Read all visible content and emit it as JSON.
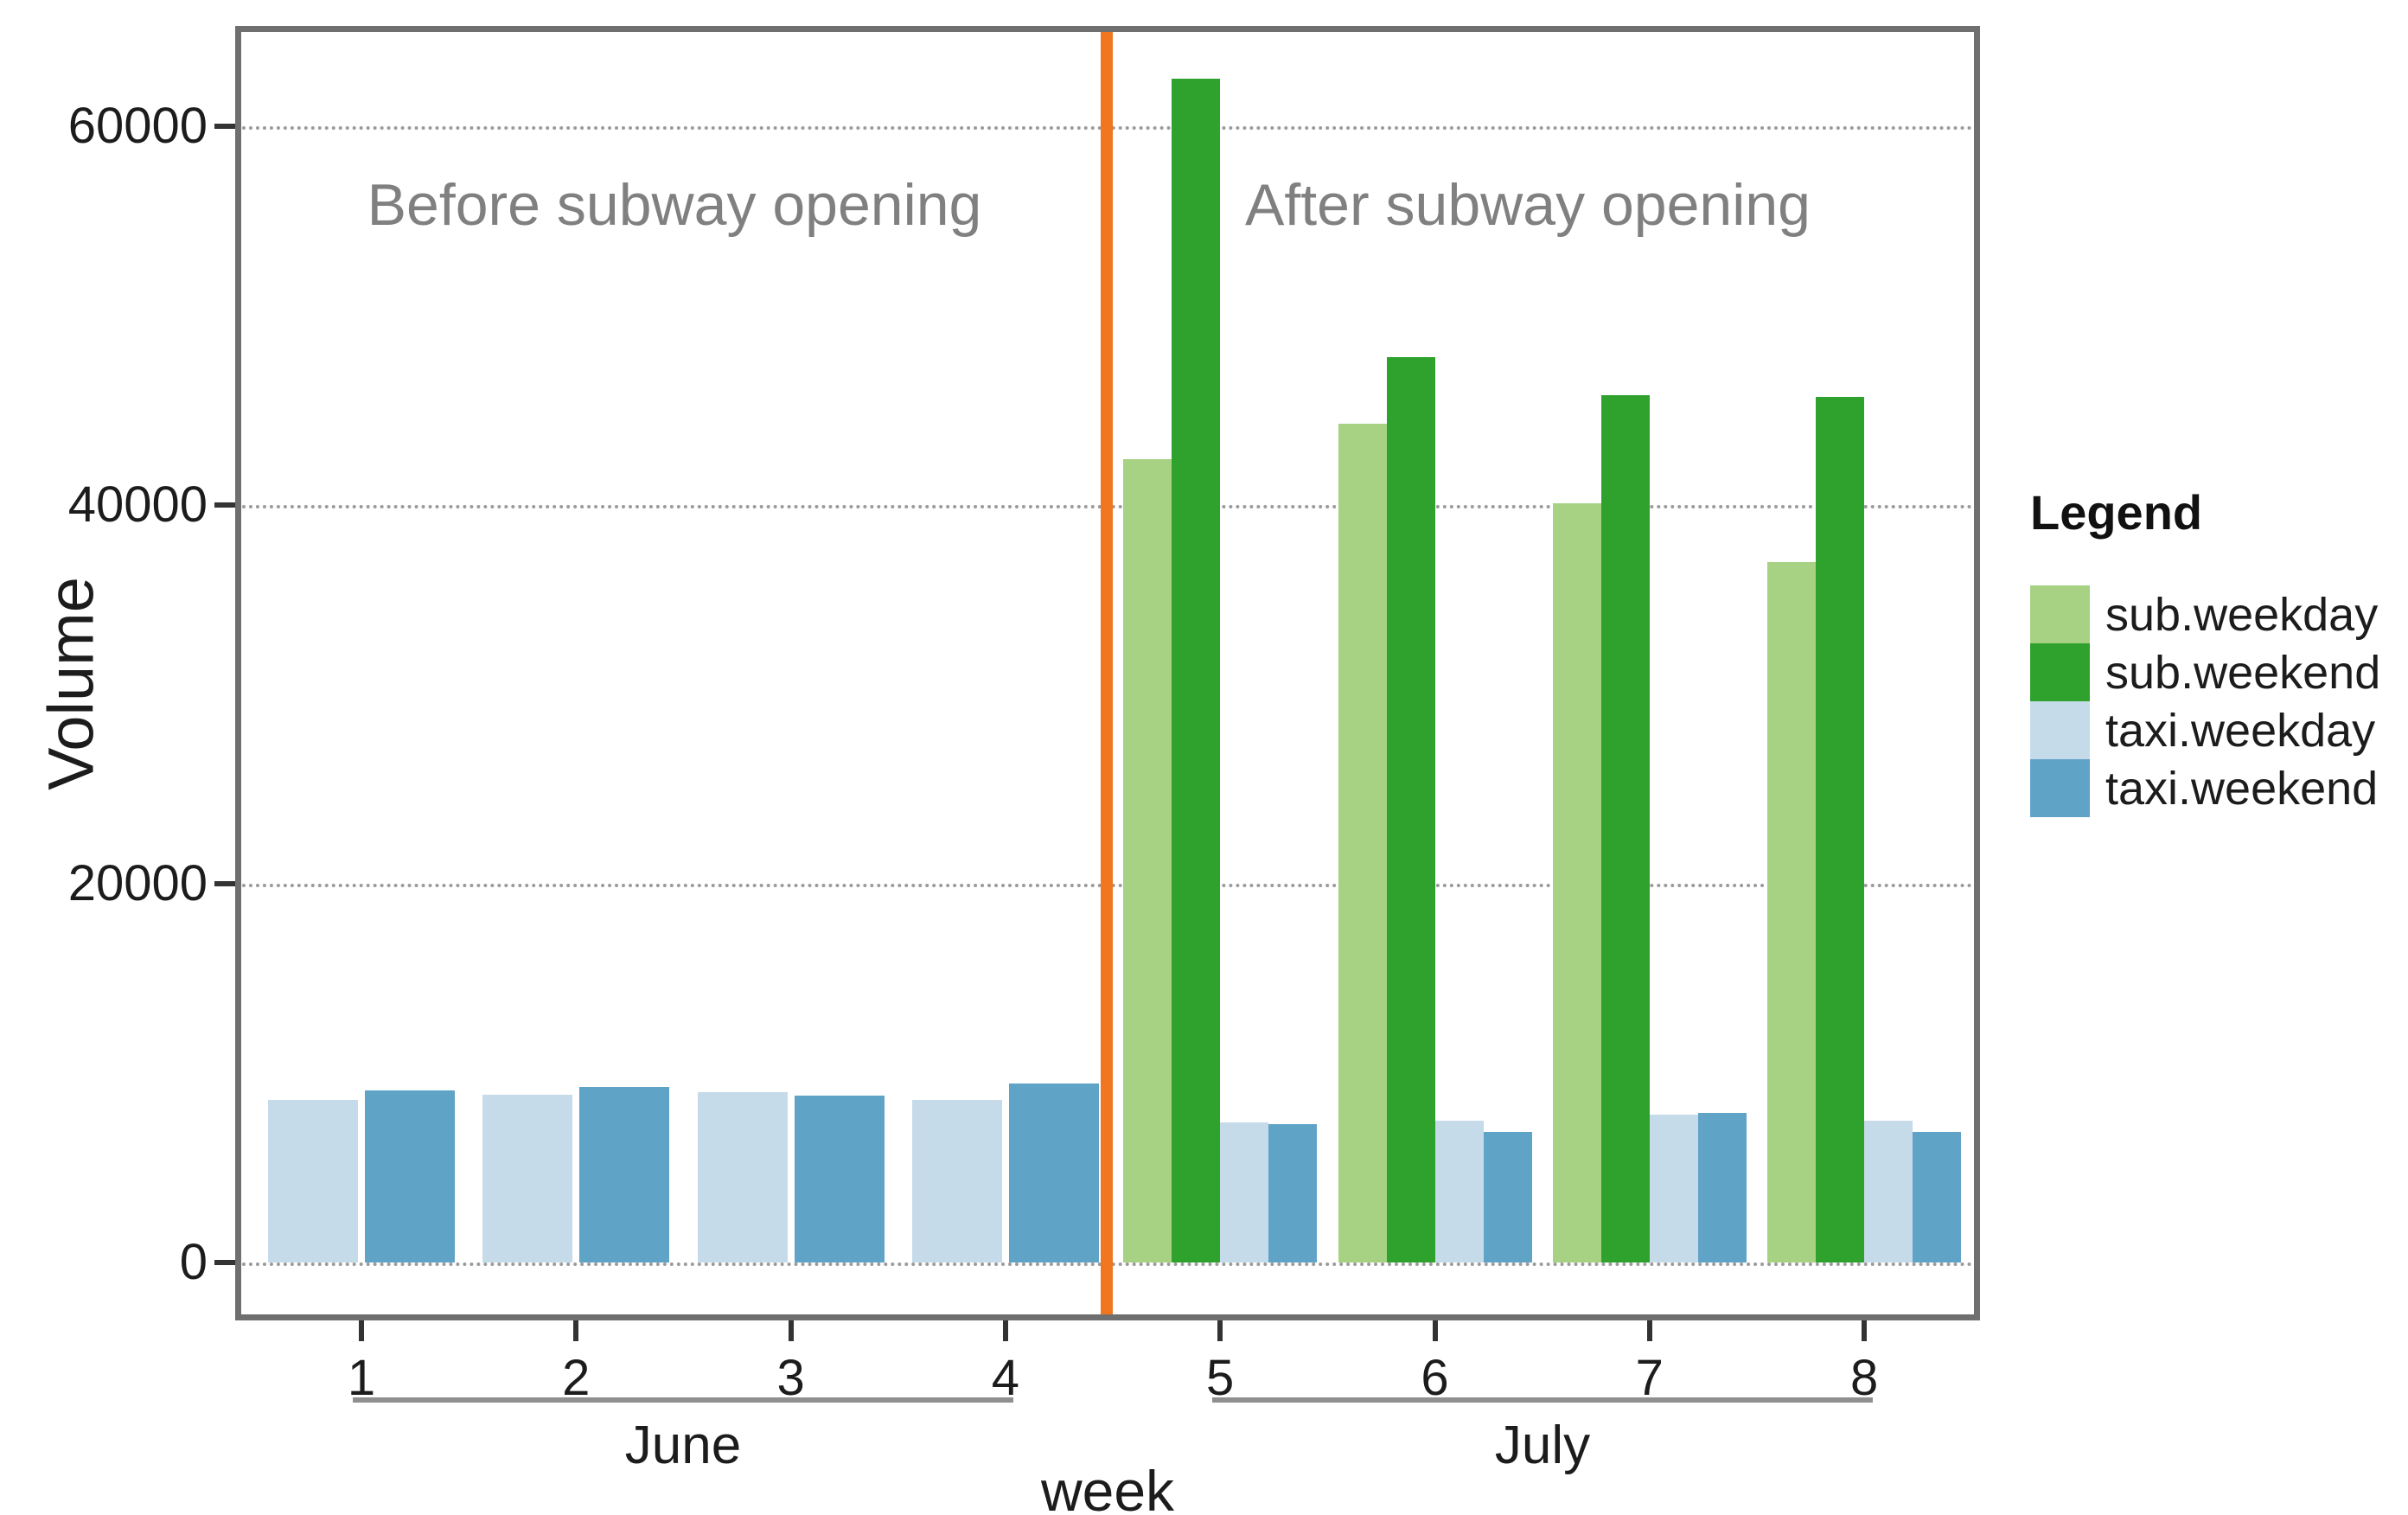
{
  "chart_data": {
    "type": "bar",
    "title": "",
    "xlabel": "week",
    "ylabel": "Volume",
    "categories": [
      "1",
      "2",
      "3",
      "4",
      "5",
      "6",
      "7",
      "8"
    ],
    "month_groups": [
      {
        "label": "June",
        "weeks": [
          1,
          4
        ]
      },
      {
        "label": "July",
        "weeks": [
          5,
          8
        ]
      }
    ],
    "y_ticks": [
      0,
      20000,
      40000,
      60000
    ],
    "ylim": [
      0,
      65300
    ],
    "grid": "horizontal-dotted",
    "legend": {
      "title": "Legend",
      "position": "right"
    },
    "series": [
      {
        "name": "sub.weekday",
        "color": "#A7D284",
        "values": [
          0,
          0,
          0,
          0,
          42400,
          44300,
          40100,
          37000
        ]
      },
      {
        "name": "sub.weekend",
        "color": "#2FA22E",
        "values": [
          0,
          0,
          0,
          0,
          62500,
          47800,
          45800,
          45700
        ]
      },
      {
        "name": "taxi.weekday",
        "color": "#C6DBEA",
        "values": [
          8600,
          8850,
          9000,
          8580,
          7400,
          7500,
          7800,
          7500
        ]
      },
      {
        "name": "taxi.weekend",
        "color": "#5FA3C7",
        "values": [
          9100,
          9270,
          8830,
          9470,
          7300,
          6900,
          7900,
          6900
        ]
      }
    ],
    "annotations": {
      "before": "Before subway opening",
      "after": "After subway opening",
      "vline_x": 4.5,
      "vline_color": "#F0761F"
    }
  },
  "style_colors": {
    "plot_border": "#6f6f6f",
    "gridline": "#9b9b9b",
    "annotation_text": "#808080",
    "axis_text": "#1c1c1c",
    "month_line": "#8f8f8f"
  }
}
